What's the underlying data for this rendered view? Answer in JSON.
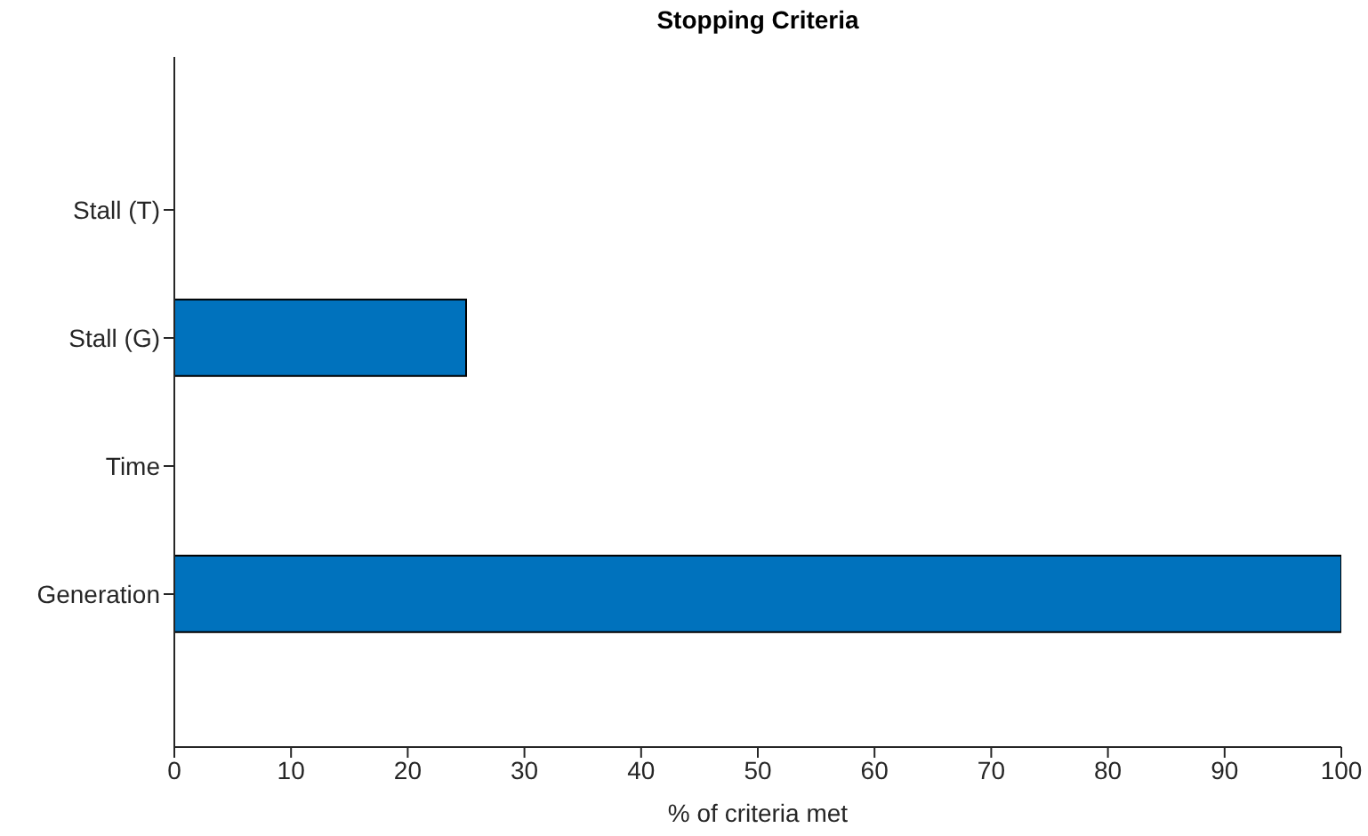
{
  "chart_data": {
    "type": "bar",
    "orientation": "horizontal",
    "title": "Stopping Criteria",
    "xlabel": "% of criteria met",
    "categories": [
      "Stall (T)",
      "Stall (G)",
      "Time",
      "Generation"
    ],
    "values": [
      0,
      25,
      0,
      100
    ],
    "color": "#0072bd",
    "xlim": [
      0,
      100
    ],
    "xticks": [
      0,
      10,
      20,
      30,
      40,
      50,
      60,
      70,
      80,
      90,
      100
    ]
  }
}
